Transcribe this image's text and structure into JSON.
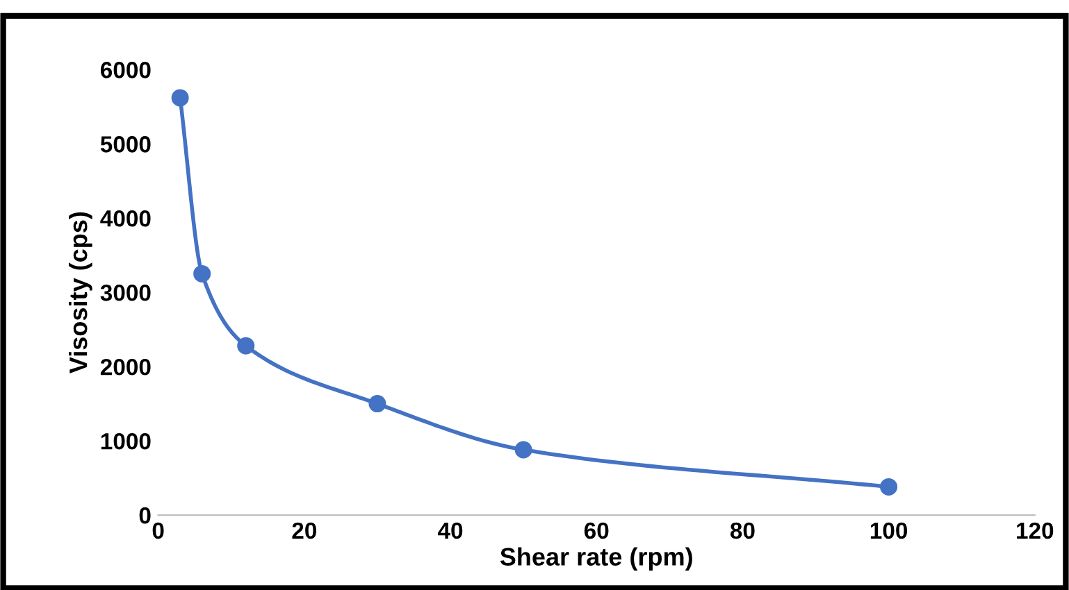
{
  "chart_data": {
    "type": "line",
    "xlabel": "Shear rate (rpm)",
    "ylabel": "Visosity (cps)",
    "x": [
      3,
      6,
      12,
      30,
      50,
      100
    ],
    "series": [
      {
        "color": "#4472c4",
        "values": [
          5620,
          3250,
          2280,
          1500,
          880,
          380
        ]
      }
    ],
    "xlim": [
      0,
      120
    ],
    "xticks": [
      0,
      20,
      40,
      60,
      80,
      100,
      120
    ],
    "ylim": [
      0,
      6000
    ],
    "yticks": [
      0,
      1000,
      2000,
      3000,
      4000,
      5000,
      6000
    ],
    "grid": false,
    "legend": false,
    "marker": "circle",
    "line_style": "solid"
  }
}
